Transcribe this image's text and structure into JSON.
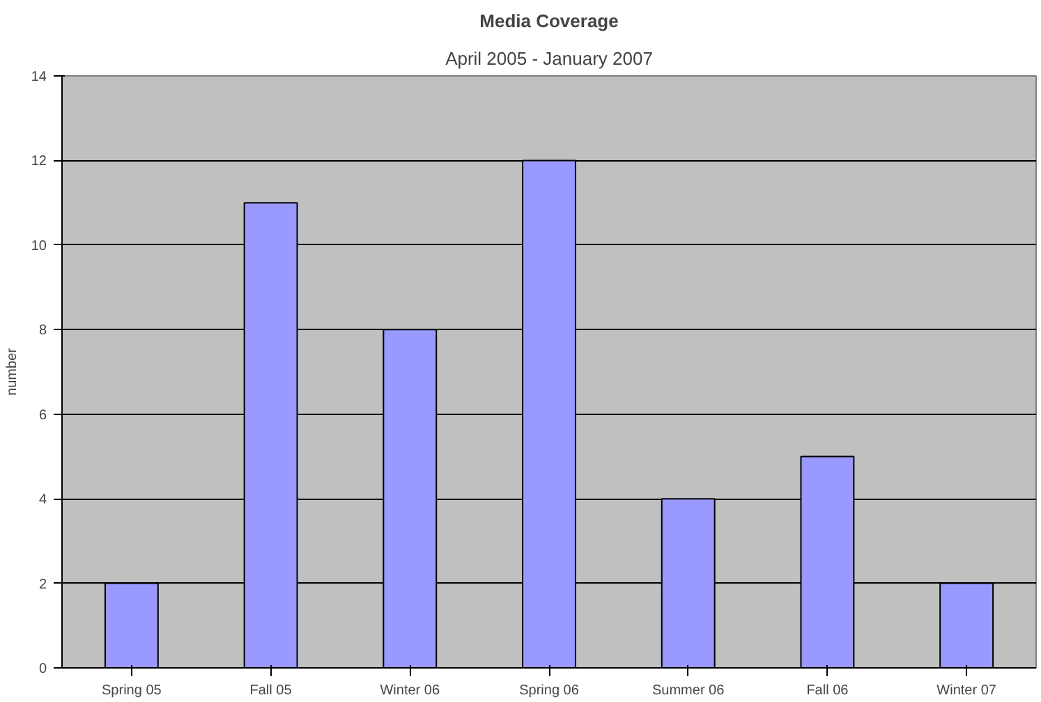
{
  "chart_data": {
    "type": "bar",
    "title": "Media Coverage",
    "subtitle": "April 2005 - January 2007",
    "ylabel": "number",
    "categories": [
      "Spring 05",
      "Fall 05",
      "Winter 06",
      "Spring 06",
      "Summer 06",
      "Fall 06",
      "Winter 07"
    ],
    "values": [
      2,
      11,
      8,
      12,
      4,
      5,
      2
    ],
    "color": "#9999ff",
    "ylim": [
      0,
      14
    ],
    "yticks": [
      0,
      2,
      4,
      6,
      8,
      10,
      12,
      14
    ],
    "grid": "y"
  }
}
